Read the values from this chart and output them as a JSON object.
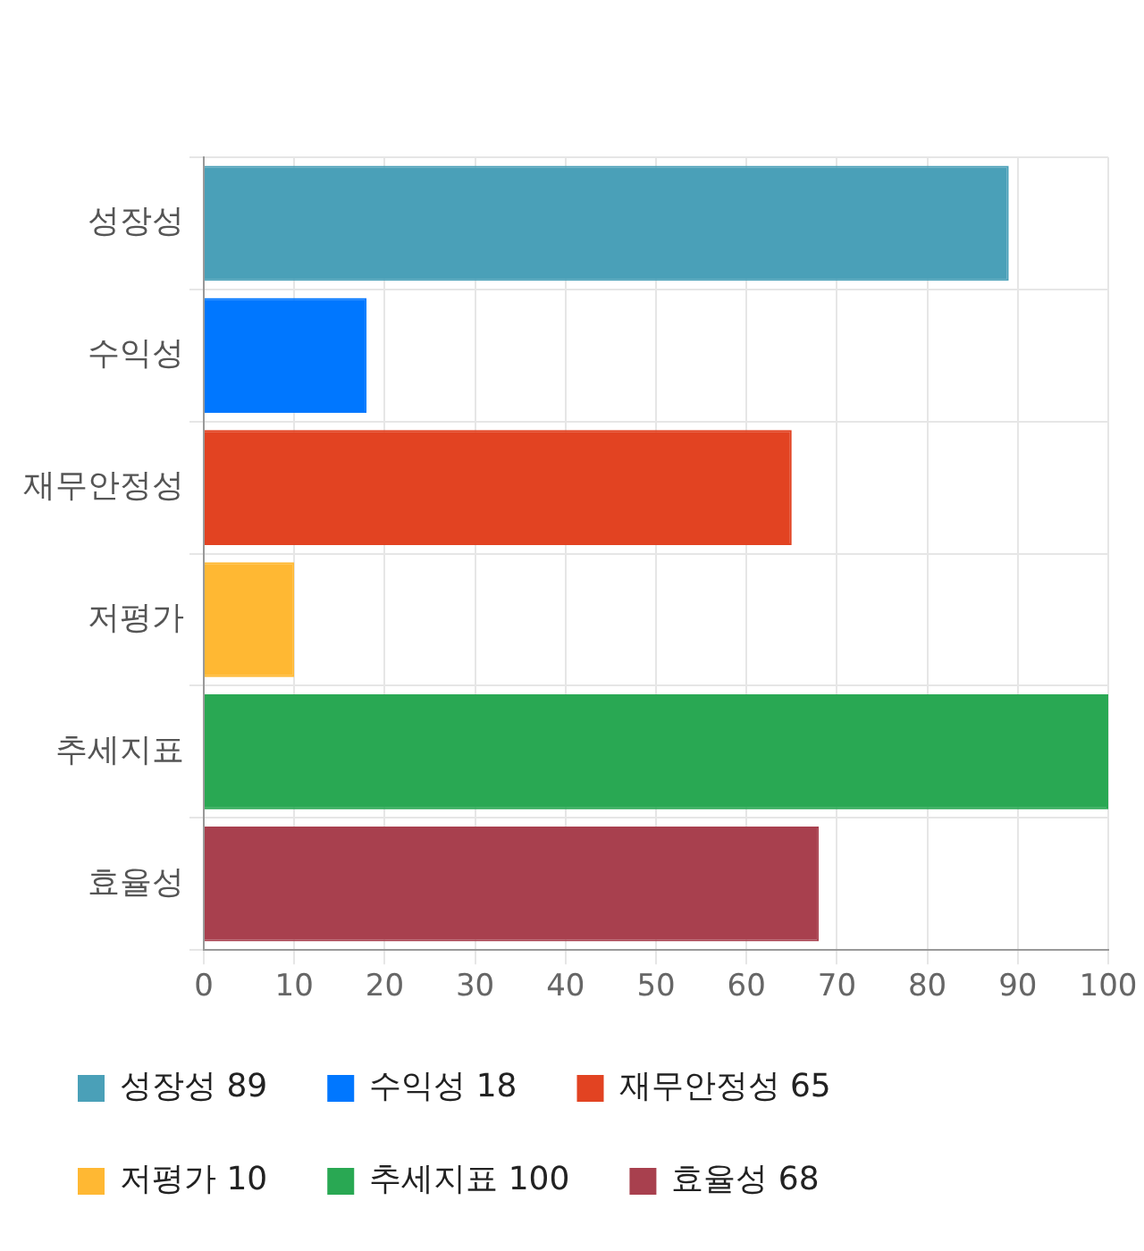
{
  "chart_data": {
    "type": "bar",
    "orientation": "horizontal",
    "categories": [
      "성장성",
      "수익성",
      "재무안정성",
      "저평가",
      "추세지표",
      "효율성"
    ],
    "series": [
      {
        "name": "성장성 89",
        "color": "#4aa0b8",
        "values": [
          89,
          null,
          null,
          null,
          null,
          null
        ]
      },
      {
        "name": "수익성 18",
        "color": "#0077ff",
        "values": [
          null,
          18,
          null,
          null,
          null,
          null
        ]
      },
      {
        "name": "재무안정성 65",
        "color": "#e24322",
        "values": [
          null,
          null,
          65,
          null,
          null,
          null
        ]
      },
      {
        "name": "저평가 10",
        "color": "#ffb833",
        "values": [
          null,
          null,
          null,
          10,
          null,
          null
        ]
      },
      {
        "name": "추세지표 100",
        "color": "#29a853",
        "values": [
          null,
          null,
          null,
          null,
          100,
          null
        ]
      },
      {
        "name": "효율성 68",
        "color": "#a8404e",
        "values": [
          null,
          null,
          null,
          null,
          null,
          68
        ]
      }
    ],
    "xlim": [
      0,
      100
    ],
    "xticks": [
      0,
      10,
      20,
      30,
      40,
      50,
      60,
      70,
      80,
      90,
      100
    ],
    "grid": true,
    "legend": "bottom"
  }
}
